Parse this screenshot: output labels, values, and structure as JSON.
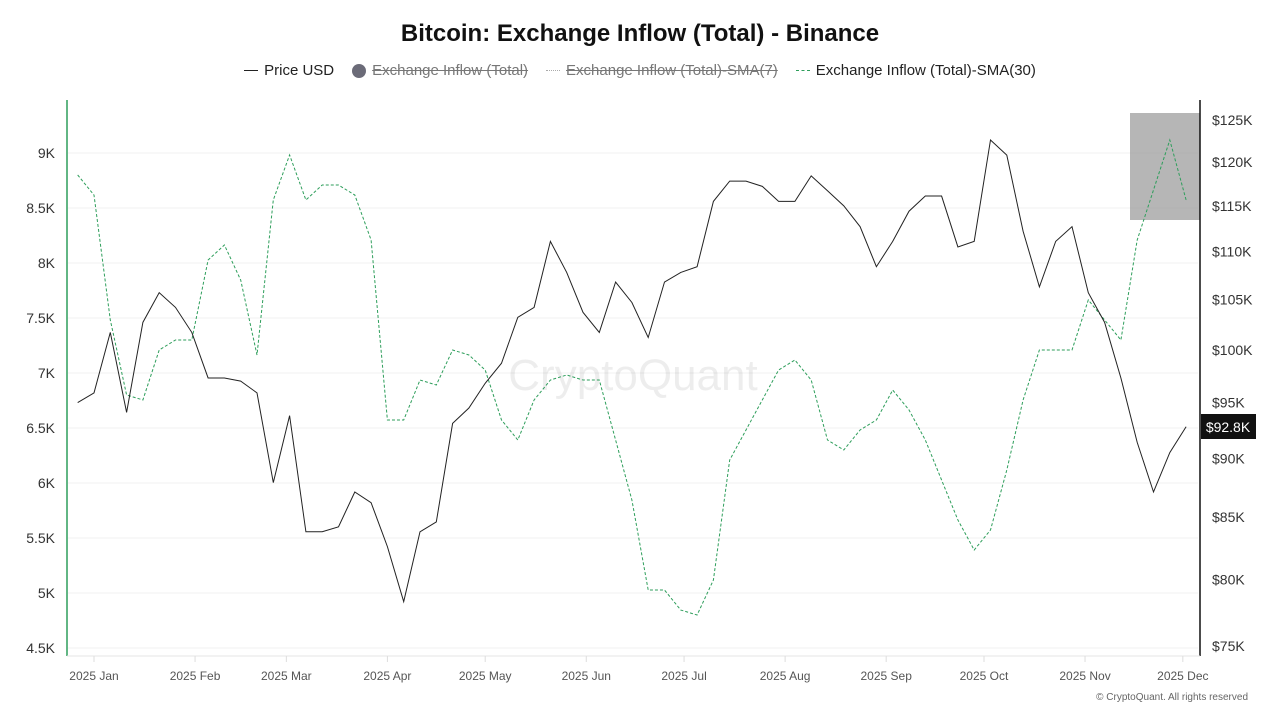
{
  "chart_data": {
    "type": "line",
    "title": "Bitcoin: Exchange Inflow (Total) - Binance",
    "legend": {
      "placement": "top",
      "entries": [
        {
          "label": "Price USD",
          "color": "#222222",
          "style": "solid",
          "visible": true
        },
        {
          "label": "Exchange Inflow (Total)",
          "color": "#6b6b78",
          "style": "circle",
          "visible": false
        },
        {
          "label": "Exchange Inflow (Total)-SMA(7)",
          "color": "#9a9a9a",
          "style": "dotted",
          "visible": false
        },
        {
          "label": "Exchange Inflow (Total)-SMA(30)",
          "color": "#2e9e5b",
          "style": "dashed",
          "visible": true
        }
      ]
    },
    "x_ticks": [
      "2025 Jan",
      "2025 Feb",
      "2025 Mar",
      "2025 Apr",
      "2025 May",
      "2025 Jun",
      "2025 Jul",
      "2025 Aug",
      "2025 Sep",
      "2025 Oct",
      "2025 Nov",
      "2025 Dec"
    ],
    "left_axis": {
      "ylim": [
        4500,
        9500
      ],
      "ticks": [
        "4.5K",
        "5K",
        "5.5K",
        "6K",
        "6.5K",
        "7K",
        "7.5K",
        "8K",
        "8.5K",
        "9K"
      ],
      "tick_values": [
        4500,
        5000,
        5500,
        6000,
        6500,
        7000,
        7500,
        8000,
        8500,
        9000
      ]
    },
    "right_axis": {
      "scale": "log",
      "ylim": [
        75000,
        125000
      ],
      "ticks": [
        "$75K",
        "$80K",
        "$85K",
        "$90K",
        "$95K",
        "$100K",
        "$105K",
        "$110K",
        "$115K",
        "$120K",
        "$125K"
      ],
      "tick_values": [
        75000,
        80000,
        85000,
        90000,
        95000,
        100000,
        105000,
        110000,
        115000,
        120000,
        125000
      ]
    },
    "current_price_label": "$92.8K",
    "grid": true,
    "dates": [
      "2024-12-27",
      "2025-01-01",
      "2025-01-06",
      "2025-01-11",
      "2025-01-16",
      "2025-01-21",
      "2025-01-26",
      "2025-01-31",
      "2025-02-05",
      "2025-02-10",
      "2025-02-15",
      "2025-02-20",
      "2025-02-25",
      "2025-03-02",
      "2025-03-07",
      "2025-03-12",
      "2025-03-17",
      "2025-03-22",
      "2025-03-27",
      "2025-04-01",
      "2025-04-06",
      "2025-04-11",
      "2025-04-16",
      "2025-04-21",
      "2025-04-26",
      "2025-05-01",
      "2025-05-06",
      "2025-05-11",
      "2025-05-16",
      "2025-05-21",
      "2025-05-26",
      "2025-05-31",
      "2025-06-05",
      "2025-06-10",
      "2025-06-15",
      "2025-06-20",
      "2025-06-25",
      "2025-06-30",
      "2025-07-05",
      "2025-07-10",
      "2025-07-15",
      "2025-07-20",
      "2025-07-25",
      "2025-07-30",
      "2025-08-04",
      "2025-08-09",
      "2025-08-14",
      "2025-08-19",
      "2025-08-24",
      "2025-08-29",
      "2025-09-03",
      "2025-09-08",
      "2025-09-13",
      "2025-09-18",
      "2025-09-23",
      "2025-09-28",
      "2025-10-03",
      "2025-10-08",
      "2025-10-13",
      "2025-10-18",
      "2025-10-23",
      "2025-10-28",
      "2025-11-02",
      "2025-11-07",
      "2025-11-12",
      "2025-11-17",
      "2025-11-22",
      "2025-11-27",
      "2025-12-02"
    ],
    "series": [
      {
        "name": "Price USD",
        "axis": "right",
        "values": [
          95000,
          95900,
          101700,
          94100,
          102700,
          105700,
          104200,
          101700,
          97300,
          97300,
          97000,
          95900,
          87900,
          93800,
          83800,
          83800,
          84200,
          87100,
          86200,
          82600,
          78300,
          83800,
          84600,
          93100,
          94500,
          96800,
          98700,
          103200,
          104200,
          111100,
          107800,
          103700,
          101700,
          106800,
          104700,
          101200,
          106800,
          107800,
          108400,
          115500,
          117800,
          117800,
          117200,
          115500,
          115500,
          118400,
          116700,
          115000,
          112700,
          108400,
          111100,
          114400,
          116100,
          116100,
          110500,
          111100,
          122600,
          120800,
          112200,
          106300,
          111100,
          112700,
          105700,
          102700,
          97300,
          91400,
          87100,
          90500,
          92800
        ]
      },
      {
        "name": "Exchange Inflow (Total)-SMA(30)",
        "axis": "left",
        "values": [
          8800,
          8618,
          7482,
          6800,
          6755,
          7209,
          7300,
          7300,
          8027,
          8164,
          7845,
          7164,
          8573,
          8982,
          8573,
          8709,
          8709,
          8618,
          8209,
          6573,
          6573,
          6936,
          6891,
          7209,
          7164,
          7027,
          6573,
          6391,
          6755,
          6936,
          6982,
          6936,
          6936,
          6391,
          5845,
          5027,
          5027,
          4845,
          4800,
          5118,
          6209,
          6482,
          6755,
          7027,
          7118,
          6936,
          6391,
          6300,
          6482,
          6573,
          6845,
          6664,
          6391,
          6027,
          5664,
          5391,
          5573,
          6118,
          6755,
          7209,
          7209,
          7209,
          7664,
          7482,
          7300,
          8209,
          8664,
          9118,
          8573
        ]
      }
    ],
    "watermark": "CryptoQuant",
    "footer": "© CryptoQuant. All rights reserved"
  }
}
